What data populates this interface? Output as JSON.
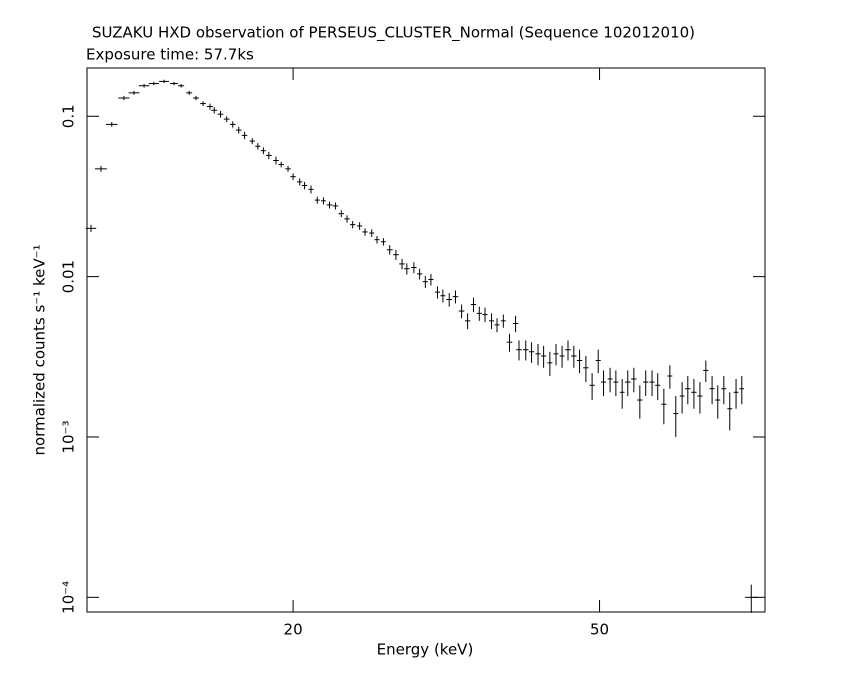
{
  "chart_data": {
    "type": "errorbar",
    "title": "SUZAKU HXD observation of PERSEUS_CLUSTER_Normal (Sequence 102012010)",
    "subtitle": "Exposure time: 57.7ks",
    "xlabel": "Energy (keV)",
    "ylabel": "normalized counts s⁻¹ keV⁻¹",
    "log_x": true,
    "log_y": true,
    "color": "#000000",
    "xlim": [
      10.8,
      82
    ],
    "ylim": [
      8.1e-05,
      0.2
    ],
    "xticks": [
      20,
      50
    ],
    "yticks": [
      0.1,
      0.01,
      {
        "value": 0.001,
        "label": "10⁻³"
      },
      {
        "value": 0.0001,
        "label": "10⁻⁴"
      }
    ],
    "x": [
      10.93,
      11.26,
      11.63,
      12.06,
      12.43,
      12.81,
      13.19,
      13.6,
      14.01,
      14.31,
      14.66,
      14.96,
      15.28,
      15.6,
      15.8,
      16.1,
      16.4,
      16.7,
      17.0,
      17.3,
      17.7,
      18.0,
      18.3,
      18.6,
      19.0,
      19.3,
      19.7,
      20.0,
      20.4,
      20.7,
      21.1,
      21.5,
      21.9,
      22.3,
      22.7,
      23.1,
      23.5,
      23.9,
      24.4,
      24.8,
      25.3,
      25.7,
      26.2,
      26.7,
      27.2,
      27.7,
      28.1,
      28.7,
      29.2,
      29.7,
      30.2,
      30.8,
      31.3,
      31.9,
      32.5,
      33.1,
      33.7,
      34.3,
      34.9,
      35.5,
      36.2,
      36.8,
      37.5,
      38.2,
      38.9,
      39.3,
      40.1,
      40.8,
      41.6,
      42.3,
      43.1,
      43.9,
      44.7,
      45.5,
      46.3,
      47.1,
      48.0,
      48.9,
      49.8,
      50.6,
      51.6,
      52.5,
      53.5,
      54.4,
      55.4,
      56.4,
      57.4,
      58.5,
      59.5,
      60.6,
      61.7,
      62.8,
      64.0,
      65.1,
      66.3,
      67.5,
      68.7,
      70.0,
      71.2,
      72.5,
      73.8,
      75.2,
      76.5,
      78.7
    ],
    "xerr": [
      0.17,
      0.2,
      0.2,
      0.2,
      0.2,
      0.2,
      0.2,
      0.2,
      0.17,
      0.13,
      0.13,
      0.13,
      0.13,
      0.14,
      0.14,
      0.14,
      0.14,
      0.14,
      0.14,
      0.14,
      0.14,
      0.14,
      0.14,
      0.16,
      0.16,
      0.16,
      0.16,
      0.16,
      0.16,
      0.16,
      0.16,
      0.16,
      0.16,
      0.19,
      0.19,
      0.19,
      0.19,
      0.19,
      0.19,
      0.19,
      0.19,
      0.19,
      0.19,
      0.23,
      0.23,
      0.23,
      0.23,
      0.23,
      0.23,
      0.23,
      0.23,
      0.23,
      0.23,
      0.27,
      0.27,
      0.27,
      0.27,
      0.27,
      0.27,
      0.27,
      0.27,
      0.27,
      0.27,
      0.32,
      0.32,
      0.32,
      0.32,
      0.32,
      0.32,
      0.32,
      0.32,
      0.32,
      0.32,
      0.38,
      0.38,
      0.38,
      0.38,
      0.38,
      0.38,
      0.38,
      0.38,
      0.38,
      0.38,
      0.45,
      0.45,
      0.45,
      0.45,
      0.45,
      0.45,
      0.45,
      0.45,
      0.45,
      0.45,
      0.53,
      0.53,
      0.53,
      0.53,
      0.53,
      0.53,
      0.53,
      0.53,
      0.53,
      0.53,
      1.5
    ],
    "values": [
      0.02,
      0.047,
      0.089,
      0.13,
      0.14,
      0.155,
      0.16,
      0.165,
      0.16,
      0.155,
      0.14,
      0.13,
      0.12,
      0.115,
      0.109,
      0.103,
      0.096,
      0.089,
      0.082,
      0.076,
      0.07,
      0.065,
      0.061,
      0.057,
      0.053,
      0.05,
      0.047,
      0.042,
      0.039,
      0.037,
      0.035,
      0.03,
      0.0297,
      0.028,
      0.0276,
      0.0247,
      0.0229,
      0.0211,
      0.0207,
      0.019,
      0.0187,
      0.017,
      0.0165,
      0.0147,
      0.0137,
      0.012,
      0.0112,
      0.0114,
      0.0104,
      0.0093,
      0.0096,
      0.008,
      0.0076,
      0.0072,
      0.0075,
      0.0061,
      0.0053,
      0.0067,
      0.0059,
      0.0058,
      0.0053,
      0.005,
      0.0053,
      0.0039,
      0.0051,
      0.0035,
      0.0035,
      0.0034,
      0.0033,
      0.0032,
      0.0029,
      0.0033,
      0.0032,
      0.0035,
      0.0032,
      0.003,
      0.0027,
      0.0021,
      0.003,
      0.0022,
      0.0023,
      0.0022,
      0.0019,
      0.0022,
      0.0023,
      0.0017,
      0.0022,
      0.0022,
      0.0021,
      0.0016,
      0.0024,
      0.0014,
      0.0018,
      0.002,
      0.0019,
      0.0018,
      0.0026,
      0.002,
      0.0017,
      0.002,
      0.0015,
      0.0019,
      0.002,
      0.0001
    ],
    "yerr": [
      0.001,
      0.002,
      0.003,
      0.004,
      0.004,
      0.004,
      0.004,
      0.004,
      0.004,
      0.004,
      0.004,
      0.004,
      0.004,
      0.005,
      0.005,
      0.005,
      0.004,
      0.004,
      0.004,
      0.004,
      0.003,
      0.003,
      0.003,
      0.003,
      0.003,
      0.002,
      0.002,
      0.002,
      0.002,
      0.002,
      0.002,
      0.0015,
      0.0015,
      0.0014,
      0.0014,
      0.0012,
      0.0012,
      0.0011,
      0.0011,
      0.001,
      0.001,
      0.0009,
      0.0009,
      0.001,
      0.001,
      0.0009,
      0.0009,
      0.0009,
      0.0008,
      0.0008,
      0.0008,
      0.0007,
      0.0007,
      0.0007,
      0.0007,
      0.0006,
      0.0006,
      0.0007,
      0.0006,
      0.0006,
      0.0006,
      0.0005,
      0.0005,
      0.0005,
      0.0006,
      0.0005,
      0.0005,
      0.0005,
      0.0005,
      0.0005,
      0.0005,
      0.0005,
      0.0005,
      0.0005,
      0.0005,
      0.0005,
      0.0005,
      0.0004,
      0.0005,
      0.0004,
      0.0004,
      0.0004,
      0.0004,
      0.0004,
      0.0004,
      0.0004,
      0.0004,
      0.0004,
      0.0004,
      0.0004,
      0.0004,
      0.0004,
      0.0004,
      0.0004,
      0.0004,
      0.0004,
      0.0004,
      0.0004,
      0.0004,
      0.0004,
      0.0004,
      0.0004,
      0.0004,
      2e-05
    ]
  }
}
